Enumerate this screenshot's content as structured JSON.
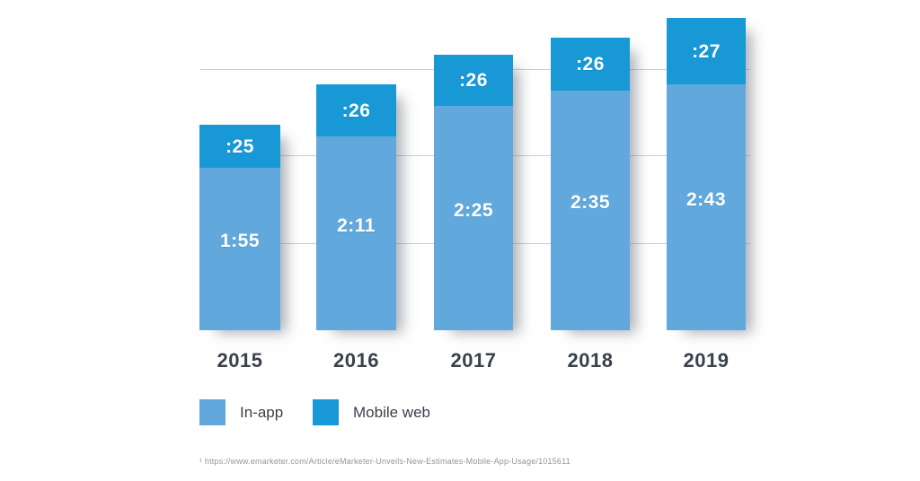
{
  "chart_data": {
    "type": "bar",
    "stacked": true,
    "title": "",
    "xlabel": "",
    "ylabel": "",
    "categories": [
      "2015",
      "2016",
      "2017",
      "2018",
      "2019"
    ],
    "series": [
      {
        "name": "In-app",
        "labels": [
          "1:55",
          "2:11",
          "2:25",
          "2:35",
          "2:43"
        ],
        "values_minutes": [
          115,
          131,
          145,
          155,
          163
        ],
        "color": "#61a8dc"
      },
      {
        "name": "Mobile web",
        "labels": [
          ":25",
          ":26",
          ":26",
          ":26",
          ":27"
        ],
        "values_minutes": [
          25,
          26,
          26,
          26,
          27
        ],
        "color": "#1899d6"
      }
    ],
    "totals_minutes": [
      140,
      157,
      171,
      181,
      190
    ],
    "y_axis": {
      "unit": "hours:minutes",
      "min_minutes": 0,
      "gridlines_minutes": [
        60,
        120,
        180
      ],
      "tick_labels_shown": false
    },
    "grid": true,
    "legend_position": "bottom-left",
    "value_label_color": "#ffffff"
  },
  "legend": {
    "items": [
      {
        "label": "In-app",
        "color": "#61a8dc"
      },
      {
        "label": "Mobile web",
        "color": "#1899d6"
      }
    ]
  },
  "footnote": {
    "text": "¹ https://www.emarketer.com/Article/eMarketer-Unveils-New-Estimates-Mobile-App-Usage/1015611"
  },
  "style": {
    "background": "#ffffff",
    "gridline_color": "#c9ccce",
    "axis_text_color": "#3a414b",
    "footnote_color": "#8f97a0"
  }
}
